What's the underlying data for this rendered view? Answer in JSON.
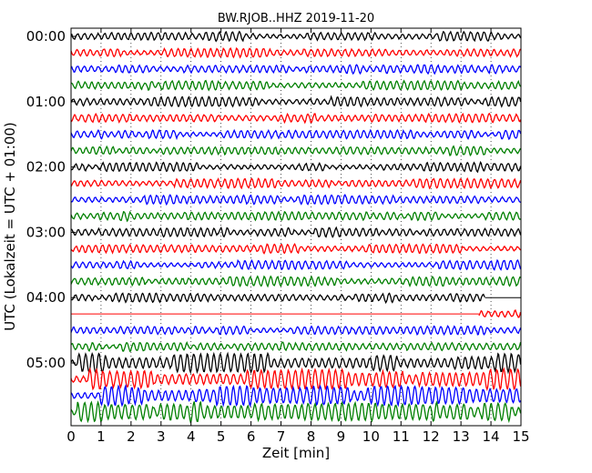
{
  "chart_data": {
    "type": "line",
    "title": "BW.RJOB..HHZ 2019-11-20",
    "xlabel": "Zeit  [min]",
    "ylabel": "UTC (Lokalzeit = UTC + 01:00)",
    "xlim": [
      0,
      15
    ],
    "x_ticks": [
      "0",
      "1",
      "2",
      "3",
      "4",
      "5",
      "6",
      "7",
      "8",
      "9",
      "10",
      "11",
      "12",
      "13",
      "14",
      "15"
    ],
    "y_ticks": [
      "00:00",
      "01:00",
      "02:00",
      "03:00",
      "04:00",
      "05:00"
    ],
    "interval_minutes": 15,
    "row_colors": [
      "#000000",
      "#ff0000",
      "#0000ff",
      "#008000"
    ],
    "grid": "vertical dotted",
    "rows": [
      {
        "start": "00:00",
        "end_min": 15
      },
      {
        "start": "00:15",
        "end_min": 15
      },
      {
        "start": "00:30",
        "end_min": 15
      },
      {
        "start": "00:45",
        "end_min": 15
      },
      {
        "start": "01:00",
        "end_min": 15
      },
      {
        "start": "01:15",
        "end_min": 15
      },
      {
        "start": "01:30",
        "end_min": 15
      },
      {
        "start": "01:45",
        "end_min": 15
      },
      {
        "start": "02:00",
        "end_min": 15
      },
      {
        "start": "02:15",
        "end_min": 15
      },
      {
        "start": "02:30",
        "end_min": 15
      },
      {
        "start": "02:45",
        "end_min": 15
      },
      {
        "start": "03:00",
        "end_min": 15
      },
      {
        "start": "03:15",
        "end_min": 15
      },
      {
        "start": "03:30",
        "end_min": 15
      },
      {
        "start": "03:45",
        "end_min": 15
      },
      {
        "start": "04:00",
        "end_min": 13.8
      },
      {
        "start": "04:15",
        "start_min": 13.6,
        "end_min": 15
      },
      {
        "start": "04:30",
        "end_min": 15
      },
      {
        "start": "04:45",
        "end_min": 15
      },
      {
        "start": "05:00",
        "end_min": 15
      },
      {
        "start": "05:15",
        "end_min": 15
      },
      {
        "start": "05:30",
        "end_min": 15
      },
      {
        "start": "05:45",
        "end_min": 15
      }
    ]
  }
}
